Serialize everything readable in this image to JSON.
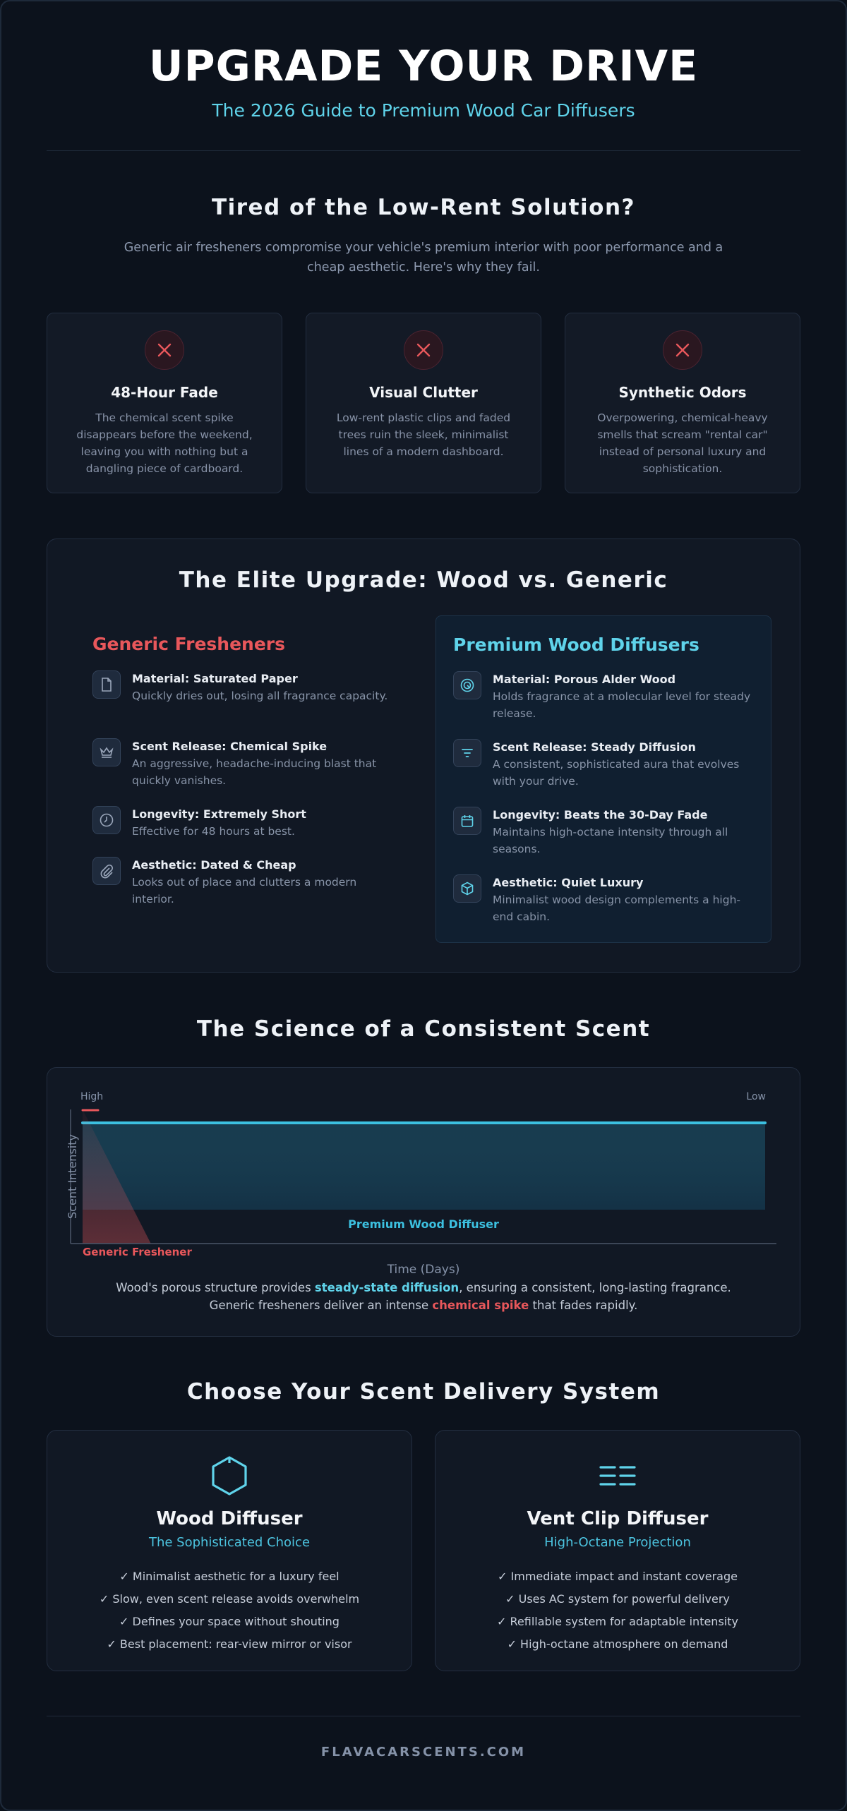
{
  "header": {
    "title": "UPGRADE YOUR DRIVE",
    "subtitle": "The 2026 Guide to Premium Wood Car Diffusers"
  },
  "problem": {
    "title": "Tired of the Low-Rent Solution?",
    "description": "Generic air fresheners compromise your vehicle's premium interior with poor performance and a cheap aesthetic. Here's why they fail.",
    "cards": [
      {
        "title": "48-Hour Fade",
        "text": "The chemical scent spike disappears before the weekend, leaving you with nothing but a dangling piece of cardboard.",
        "icon": "x-icon"
      },
      {
        "title": "Visual Clutter",
        "text": "Low-rent plastic clips and faded trees ruin the sleek, minimalist lines of a modern dashboard.",
        "icon": "x-icon"
      },
      {
        "title": "Synthetic Odors",
        "text": "Overpowering, chemical-heavy smells that scream \"rental car\" instead of personal luxury and sophistication.",
        "icon": "x-icon"
      }
    ]
  },
  "compare": {
    "title": "The Elite Upgrade: Wood vs. Generic",
    "generic": {
      "heading": "Generic Fresheners",
      "items": [
        {
          "title": "Material: Saturated Paper",
          "text": "Quickly dries out, losing all fragrance capacity.",
          "icon": "document-icon"
        },
        {
          "title": "Scent Release: Chemical Spike",
          "text": "An aggressive, headache-inducing blast that quickly vanishes.",
          "icon": "crown-icon"
        },
        {
          "title": "Longevity: Extremely Short",
          "text": "Effective for 48 hours at best.",
          "icon": "clock-icon"
        },
        {
          "title": "Aesthetic: Dated & Cheap",
          "text": "Looks out of place and clutters a modern interior.",
          "icon": "paperclip-icon"
        }
      ]
    },
    "premium": {
      "heading": "Premium Wood Diffusers",
      "items": [
        {
          "title": "Material: Porous Alder Wood",
          "text": "Holds fragrance at a molecular level for steady release.",
          "icon": "wood-ring-icon"
        },
        {
          "title": "Scent Release: Steady Diffusion",
          "text": "A consistent, sophisticated aura that evolves with your drive.",
          "icon": "filter-icon"
        },
        {
          "title": "Longevity: Beats the 30-Day Fade",
          "text": "Maintains high-octane intensity through all seasons.",
          "icon": "calendar-icon"
        },
        {
          "title": "Aesthetic: Quiet Luxury",
          "text": "Minimalist wood design complements a high-end cabin.",
          "icon": "cube-icon"
        }
      ]
    }
  },
  "science": {
    "title": "The Science of a Consistent Scent",
    "caption_pre": "Wood's porous structure provides ",
    "caption_hl1": "steady-state diffusion",
    "caption_mid": ", ensuring a consistent, long-lasting fragrance. Generic fresheners deliver an intense ",
    "caption_hl2": "chemical spike",
    "caption_post": " that fades rapidly."
  },
  "chart_data": {
    "type": "area",
    "title": "",
    "xlabel": "Time (Days)",
    "ylabel": "Scent Intensity",
    "top_left_label": "High",
    "top_right_label": "Low",
    "x": [
      0,
      0.1,
      1
    ],
    "series": [
      {
        "name": "Premium Wood Diffuser",
        "values": [
          0.9,
          0.9,
          0.9
        ],
        "color": "#3cc0e0"
      },
      {
        "name": "Generic Freshener",
        "values": [
          1.0,
          0,
          0
        ],
        "color": "#e8575b"
      }
    ]
  },
  "delivery": {
    "title": "Choose Your Scent Delivery System",
    "cards": [
      {
        "title": "Wood Diffuser",
        "tagline": "The Sophisticated Choice",
        "icon": "hexagon-icon",
        "points": [
          "✓ Minimalist aesthetic for a luxury feel",
          "✓ Slow, even scent release avoids overwhelm",
          "✓ Defines your space without shouting",
          "✓ Best placement: rear-view mirror or visor"
        ]
      },
      {
        "title": "Vent Clip Diffuser",
        "tagline": "High-Octane Projection",
        "icon": "vent-icon",
        "points": [
          "✓ Immediate impact and instant coverage",
          "✓ Uses AC system for powerful delivery",
          "✓ Refillable system for adaptable intensity",
          "✓ High-octane atmosphere on demand"
        ]
      }
    ]
  },
  "footer": {
    "brand": "FLAVACARSCENTS.COM"
  },
  "colors": {
    "accent": "#5fd3ea",
    "danger": "#e8575b",
    "background": "#0c121c"
  }
}
